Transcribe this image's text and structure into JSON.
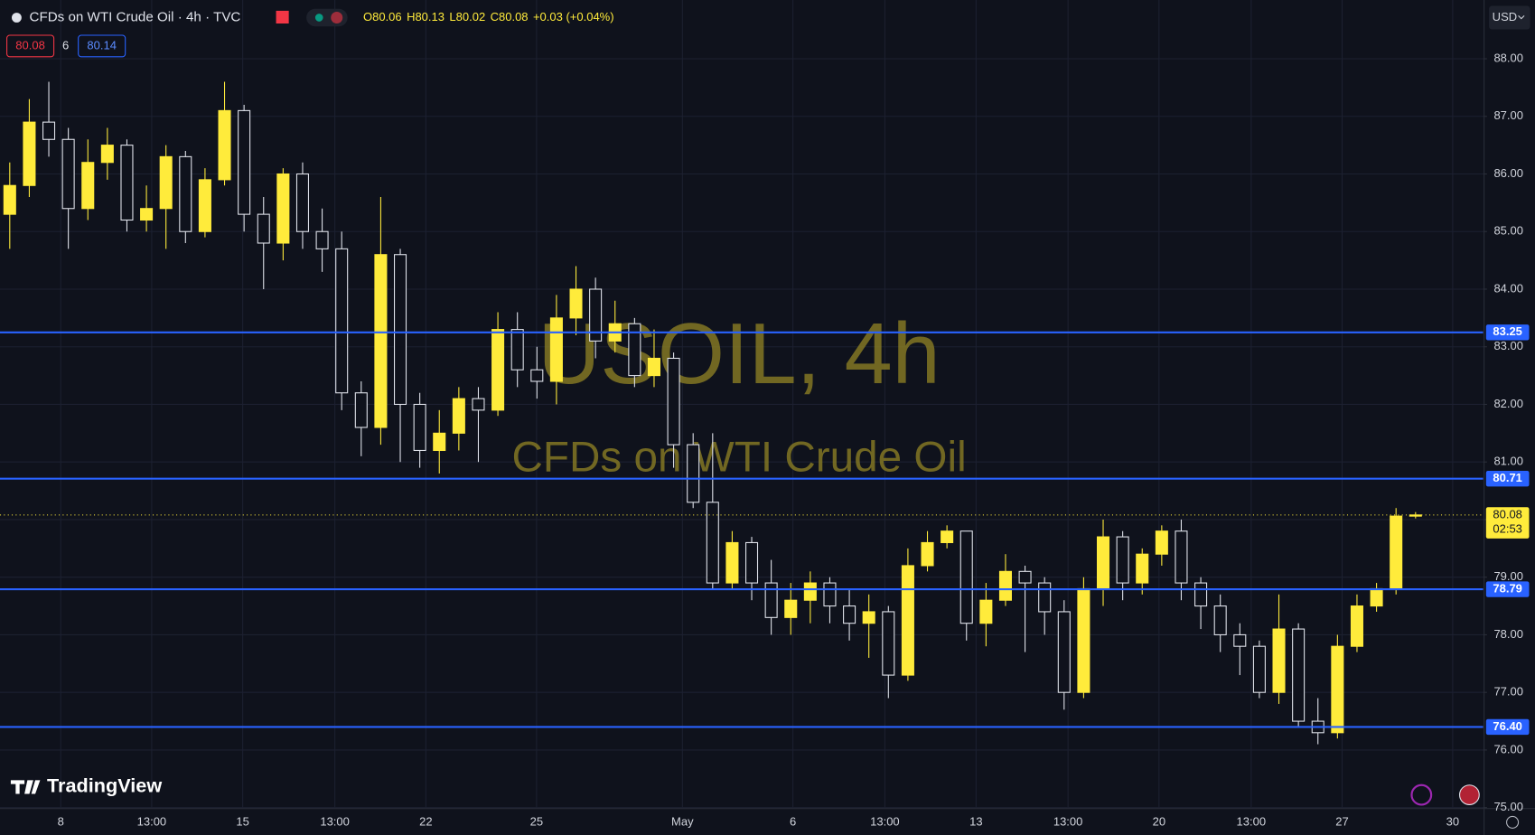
{
  "header": {
    "symbol": "CFDs on WTI Crude Oil · 4h · TVC",
    "ohlc": [
      "O80.06",
      "H80.13",
      "L80.02",
      "C80.08",
      "+0.03 (+0.04%)"
    ],
    "bid": "80.08",
    "spread": "6",
    "ask": "80.14",
    "currency": "USD",
    "logo": "TradingView"
  },
  "chart_data": {
    "type": "candlestick",
    "watermark": [
      "USOIL, 4h",
      "CFDs on WTI Crude Oil"
    ],
    "up_color": "#ffeb3b",
    "down_color": "#e0e3eb",
    "level_color": "#2962ff",
    "open": [
      85.3,
      85.8,
      86.9,
      86.6,
      85.4,
      86.2,
      86.5,
      85.2,
      85.4,
      86.3,
      85.0,
      85.9,
      87.1,
      85.3,
      84.8,
      86.0,
      85.0,
      84.7,
      82.2,
      81.6,
      84.6,
      82.0,
      81.2,
      81.5,
      82.1,
      81.9,
      83.3,
      82.6,
      82.4,
      83.5,
      84.0,
      83.1,
      83.4,
      82.5,
      82.8,
      81.3,
      80.3,
      78.9,
      79.6,
      78.9,
      78.3,
      78.6,
      78.9,
      78.5,
      78.2,
      78.4,
      77.3,
      79.2,
      79.6,
      79.8,
      78.2,
      78.6,
      79.1,
      78.9,
      78.4,
      77.0,
      78.8,
      79.7,
      78.9,
      79.4,
      79.8,
      78.9,
      78.5,
      78.0,
      77.8,
      77.0,
      78.1,
      76.5,
      76.3,
      77.8,
      78.5,
      78.8,
      80.06
    ],
    "high": [
      86.2,
      87.3,
      87.6,
      86.8,
      86.6,
      86.8,
      86.6,
      85.8,
      86.5,
      86.4,
      86.1,
      87.6,
      87.2,
      85.6,
      86.1,
      86.2,
      85.4,
      85.0,
      82.4,
      85.6,
      84.7,
      82.2,
      81.9,
      82.3,
      82.3,
      83.6,
      83.6,
      83.0,
      83.9,
      84.4,
      84.2,
      83.8,
      83.5,
      83.3,
      82.9,
      81.5,
      81.5,
      79.8,
      79.7,
      79.3,
      78.9,
      79.1,
      79.0,
      78.8,
      78.7,
      78.5,
      79.5,
      79.8,
      79.9,
      79.8,
      78.9,
      79.4,
      79.2,
      79.0,
      78.6,
      79.0,
      80.0,
      79.8,
      79.5,
      79.9,
      80.0,
      79.0,
      78.7,
      78.2,
      77.9,
      78.7,
      78.2,
      76.9,
      78.0,
      78.7,
      78.9,
      80.2,
      80.13
    ],
    "low": [
      84.7,
      85.6,
      86.3,
      84.7,
      85.2,
      85.9,
      85.0,
      85.0,
      84.7,
      84.8,
      84.9,
      85.8,
      85.0,
      84.0,
      84.5,
      84.7,
      84.3,
      81.9,
      81.1,
      81.3,
      81.0,
      80.9,
      80.8,
      81.2,
      81.0,
      81.8,
      82.3,
      82.1,
      82.0,
      83.2,
      82.8,
      82.9,
      82.3,
      82.3,
      80.9,
      80.2,
      78.8,
      78.8,
      78.6,
      78.0,
      78.0,
      78.2,
      78.2,
      77.9,
      77.6,
      76.9,
      77.2,
      79.1,
      79.5,
      77.9,
      77.8,
      78.5,
      77.7,
      78.0,
      76.7,
      76.9,
      78.5,
      78.6,
      78.7,
      79.2,
      78.6,
      78.1,
      77.7,
      77.3,
      76.9,
      76.8,
      76.4,
      76.1,
      76.2,
      77.7,
      78.4,
      78.7,
      80.02
    ],
    "close": [
      85.8,
      86.9,
      86.6,
      85.4,
      86.2,
      86.5,
      85.2,
      85.4,
      86.3,
      85.0,
      85.9,
      87.1,
      85.3,
      84.8,
      86.0,
      85.0,
      84.7,
      82.2,
      81.6,
      84.6,
      82.0,
      81.2,
      81.5,
      82.1,
      81.9,
      83.3,
      82.6,
      82.4,
      83.5,
      84.0,
      83.1,
      83.4,
      82.5,
      82.8,
      81.3,
      80.3,
      78.9,
      79.6,
      78.9,
      78.3,
      78.6,
      78.9,
      78.5,
      78.2,
      78.4,
      77.3,
      79.2,
      79.6,
      79.8,
      78.2,
      78.6,
      79.1,
      78.9,
      78.4,
      77.0,
      78.8,
      79.7,
      78.9,
      79.4,
      79.8,
      78.9,
      78.5,
      78.0,
      77.8,
      77.0,
      78.1,
      76.5,
      76.3,
      77.8,
      78.5,
      78.8,
      80.06,
      80.08
    ],
    "ylim": [
      75.0,
      89.02
    ],
    "yticks": [
      {
        "value": 75,
        "label": "75.00"
      },
      {
        "value": 76,
        "label": "76.00"
      },
      {
        "value": 77,
        "label": "77.00"
      },
      {
        "value": 78,
        "label": "78.00"
      },
      {
        "value": 79,
        "label": "79.00"
      },
      {
        "value": 80,
        "label": "80.00"
      },
      {
        "value": 81,
        "label": "81.00"
      },
      {
        "value": 82,
        "label": "82.00"
      },
      {
        "value": 83,
        "label": "83.00"
      },
      {
        "value": 84,
        "label": "84.00"
      },
      {
        "value": 85,
        "label": "85.00"
      },
      {
        "value": 86,
        "label": "86.00"
      },
      {
        "value": 87,
        "label": "87.00"
      },
      {
        "value": 88,
        "label": "88.00"
      }
    ],
    "xlim": [
      0,
      75.96
    ],
    "xticks": [
      {
        "value": 3.11,
        "label": "8"
      },
      {
        "value": 7.77,
        "label": "13:00"
      },
      {
        "value": 12.43,
        "label": "15"
      },
      {
        "value": 17.15,
        "label": "13:00"
      },
      {
        "value": 21.81,
        "label": "22"
      },
      {
        "value": 27.48,
        "label": "25"
      },
      {
        "value": 34.95,
        "label": "May"
      },
      {
        "value": 40.61,
        "label": "6"
      },
      {
        "value": 45.32,
        "label": "13:00"
      },
      {
        "value": 49.99,
        "label": "13"
      },
      {
        "value": 54.7,
        "label": "13:00"
      },
      {
        "value": 59.36,
        "label": "20"
      },
      {
        "value": 64.08,
        "label": "13:00"
      },
      {
        "value": 68.74,
        "label": "27"
      },
      {
        "value": 74.4,
        "label": "30"
      }
    ],
    "levels": [
      {
        "value": 83.25,
        "label": "83.25"
      },
      {
        "value": 80.71,
        "label": "80.71"
      },
      {
        "value": 78.79,
        "label": "78.79"
      },
      {
        "value": 76.4,
        "label": "76.40"
      }
    ],
    "last_price": {
      "value": 80.08,
      "label": "80.08"
    },
    "countdown": "02:53",
    "grid": true
  }
}
